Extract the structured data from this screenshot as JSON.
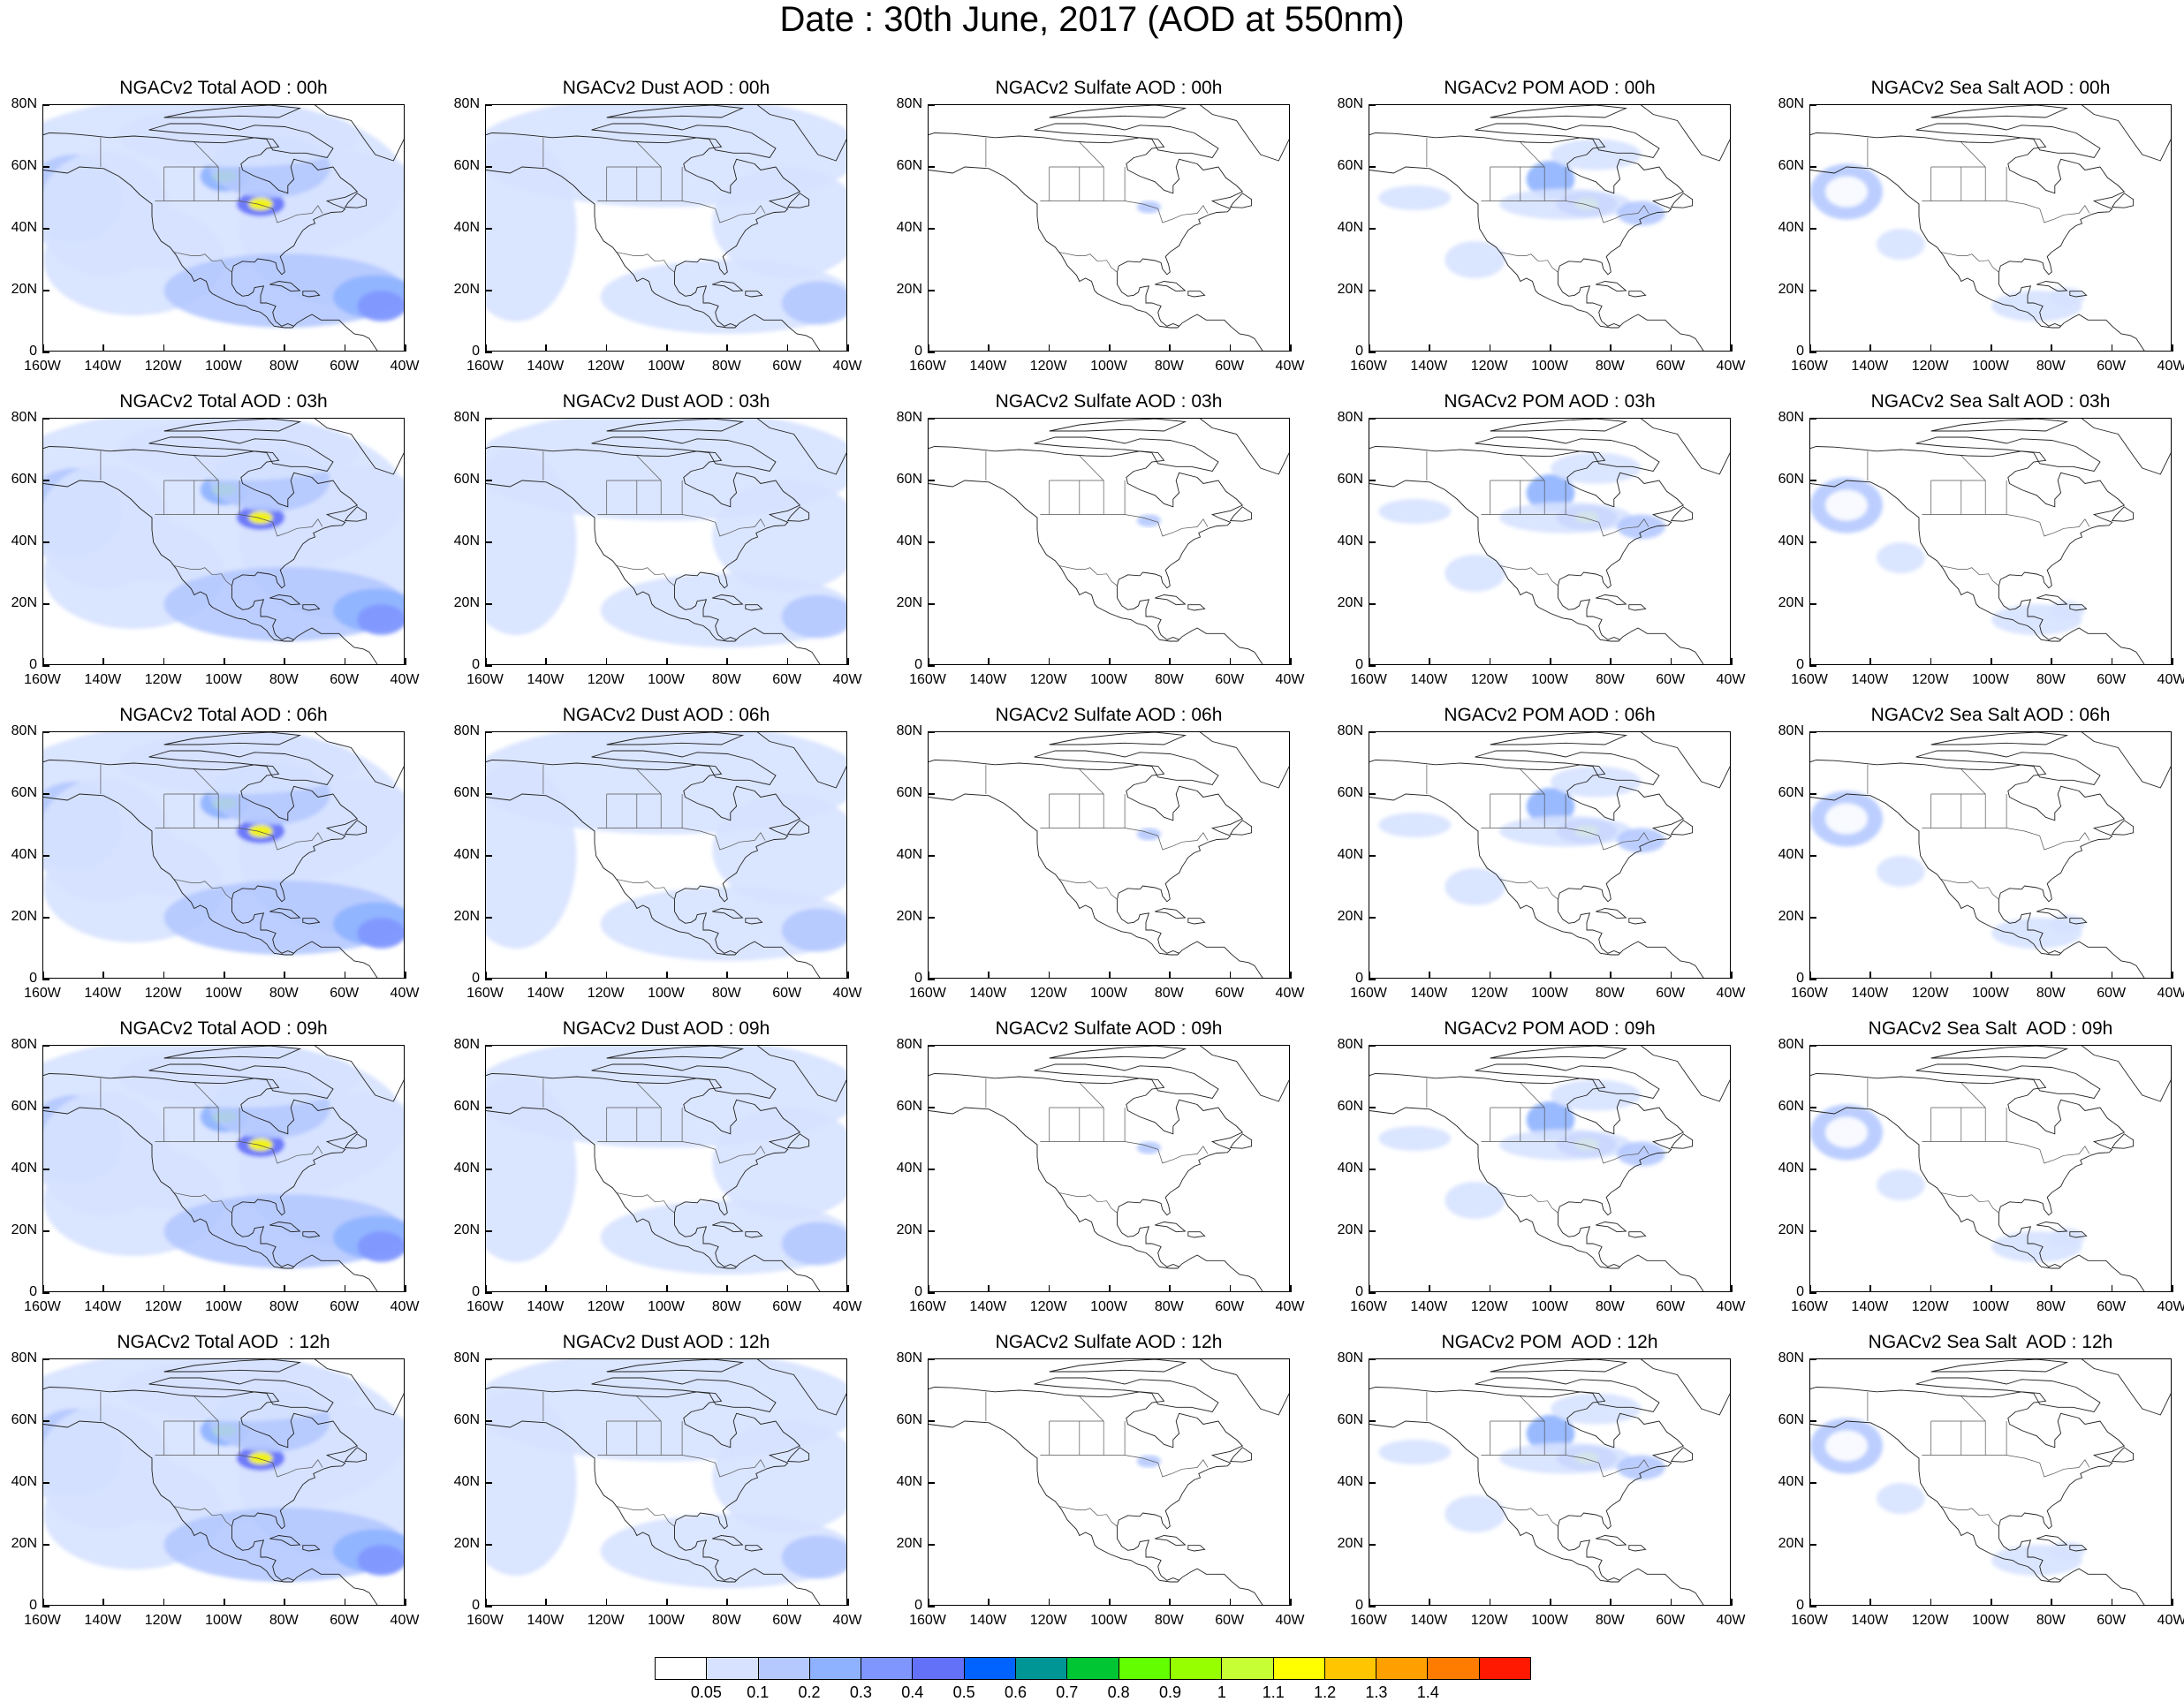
{
  "title": "Date : 30th June, 2017 (AOD at 550nm)",
  "y_ticks": [
    "80N",
    "60N",
    "40N",
    "20N",
    "0"
  ],
  "x_ticks": [
    "160W",
    "140W",
    "120W",
    "100W",
    "80W",
    "60W",
    "40W"
  ],
  "panels": [
    [
      "NGACv2 Total AOD : 00h",
      "NGACv2 Dust AOD : 00h",
      "NGACv2 Sulfate AOD : 00h",
      "NGACv2 POM AOD : 00h",
      "NGACv2 Sea Salt AOD : 00h"
    ],
    [
      "NGACv2 Total AOD : 03h",
      "NGACv2 Dust AOD : 03h",
      "NGACv2 Sulfate AOD : 03h",
      "NGACv2 POM AOD : 03h",
      "NGACv2 Sea Salt AOD : 03h"
    ],
    [
      "NGACv2 Total AOD : 06h",
      "NGACv2 Dust AOD : 06h",
      "NGACv2 Sulfate AOD : 06h",
      "NGACv2 POM AOD : 06h",
      "NGACv2 Sea Salt AOD : 06h"
    ],
    [
      "NGACv2 Total AOD : 09h",
      "NGACv2 Dust AOD : 09h",
      "NGACv2 Sulfate AOD : 09h",
      "NGACv2 POM AOD : 09h",
      "NGACv2 Sea Salt  AOD : 09h"
    ],
    [
      "NGACv2 Total AOD  : 12h",
      "NGACv2 Dust AOD : 12h",
      "NGACv2 Sulfate AOD : 12h",
      "NGACv2 POM  AOD : 12h",
      "NGACv2 Sea Salt  AOD : 12h"
    ]
  ],
  "colorbar": {
    "labels": [
      "0.05",
      "0.1",
      "0.2",
      "0.3",
      "0.4",
      "0.5",
      "0.6",
      "0.7",
      "0.8",
      "0.9",
      "1",
      "1.1",
      "1.2",
      "1.3",
      "1.4"
    ],
    "colors": [
      "#ffffff",
      "#d6e2ff",
      "#b5c9ff",
      "#8eb2ff",
      "#7f96ff",
      "#6370f8",
      "#0063ff",
      "#009696",
      "#00c633",
      "#63ff00",
      "#96ff00",
      "#c6ff33",
      "#ffff00",
      "#ffc600",
      "#ffa000",
      "#ff7c00",
      "#ff1900"
    ]
  }
}
